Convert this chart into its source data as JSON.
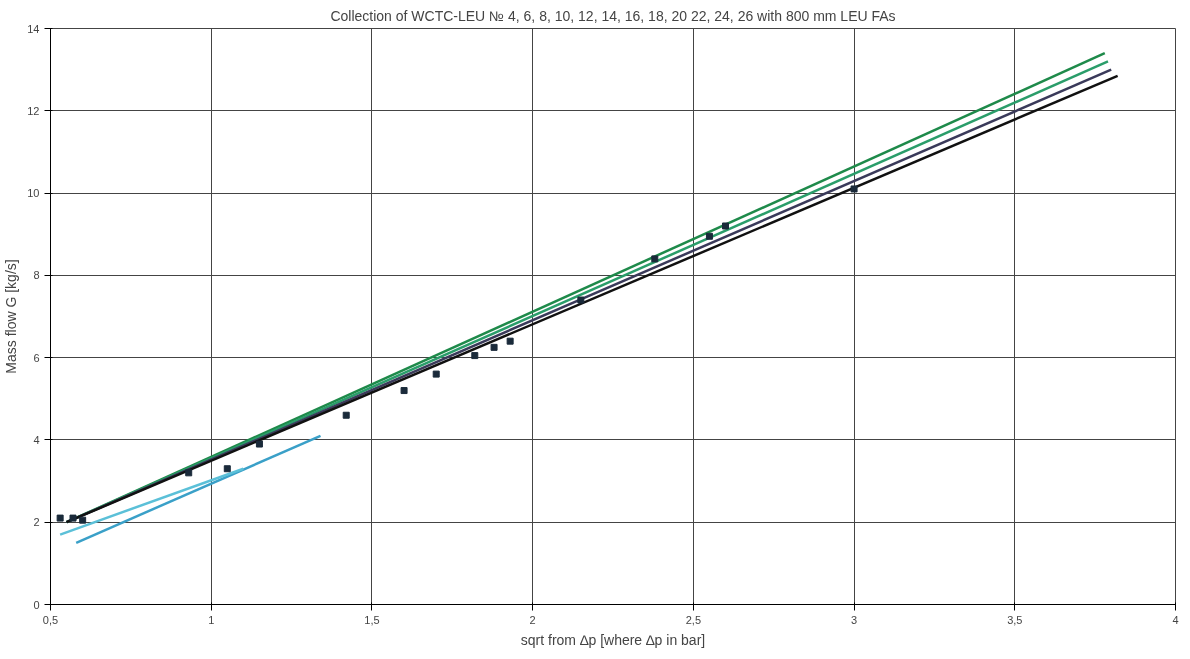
{
  "chart_data": {
    "type": "line",
    "title": "Collection of WCTC-LEU № 4, 6, 8, 10, 12, 14, 16, 18, 20 22, 24, 26 with 800 mm LEU FAs",
    "xlabel": "sqrt from ∆p [where ∆p in bar]",
    "ylabel": "Mass flow G [kg/s]",
    "xlim": [
      0.5,
      4
    ],
    "ylim": [
      0,
      14
    ],
    "xticks": [
      {
        "value": 0.5,
        "label": "0,5"
      },
      1,
      {
        "value": 1.5,
        "label": "1,5"
      },
      2,
      {
        "value": 2.5,
        "label": "2,5"
      },
      3,
      {
        "value": 3.5,
        "label": "3,5"
      },
      4
    ],
    "yticks": [
      0,
      2,
      4,
      6,
      8,
      10,
      12,
      14
    ],
    "grid": true,
    "marker": "none",
    "line_style": "solid",
    "series": [
      {
        "color": "#1e8a4a",
        "x": [
          0.55,
          3.78
        ],
        "values": [
          2.0,
          13.4
        ]
      },
      {
        "color": "#2a9d6a",
        "x": [
          0.55,
          3.79
        ],
        "values": [
          2.0,
          13.2
        ]
      },
      {
        "color": "#3a3a5a",
        "x": [
          0.55,
          3.8
        ],
        "values": [
          2.0,
          13.0
        ]
      },
      {
        "color": "#111111",
        "x": [
          0.55,
          3.82
        ],
        "values": [
          2.0,
          12.85
        ]
      },
      {
        "color": "#3aa0c8",
        "x": [
          0.58,
          1.34
        ],
        "values": [
          1.5,
          4.1
        ]
      },
      {
        "color": "#5bc0d8",
        "x": [
          0.53,
          1.1
        ],
        "values": [
          1.7,
          3.3
        ]
      },
      {
        "type": "scatter",
        "marker": "square",
        "color": "#1a2a3a",
        "x": [
          0.53,
          0.57,
          0.6,
          0.93,
          1.05,
          1.15,
          1.42,
          1.6,
          1.7,
          1.82,
          1.88,
          1.93,
          2.15,
          2.38,
          2.55,
          2.6,
          3.0
        ],
        "values": [
          2.1,
          2.1,
          2.05,
          3.2,
          3.3,
          3.9,
          4.6,
          5.2,
          5.6,
          6.05,
          6.25,
          6.4,
          7.4,
          8.4,
          8.95,
          9.2,
          10.1
        ]
      }
    ]
  }
}
